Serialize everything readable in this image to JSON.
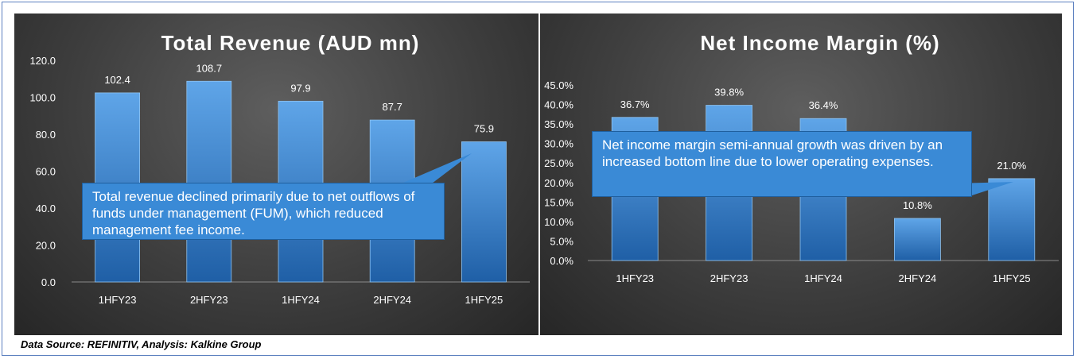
{
  "chart_data": [
    {
      "type": "bar",
      "title": "Total Revenue (AUD mn)",
      "categories": [
        "1HFY23",
        "2HFY23",
        "1HFY24",
        "2HFY24",
        "1HFY25"
      ],
      "values": [
        102.4,
        108.7,
        97.9,
        87.7,
        75.9
      ],
      "value_labels": [
        "102.4",
        "108.7",
        "97.9",
        "87.7",
        "75.9"
      ],
      "ylim": [
        0,
        120
      ],
      "yticks": [
        "0.0",
        "20.0",
        "40.0",
        "60.0",
        "80.0",
        "100.0",
        "120.0"
      ],
      "xlabel": "",
      "ylabel": "",
      "annotation": "Total revenue declined primarily due to net outflows of funds under management (FUM), which reduced management fee income."
    },
    {
      "type": "bar",
      "title": "Net Income Margin (%)",
      "categories": [
        "1HFY23",
        "2HFY23",
        "1HFY24",
        "2HFY24",
        "1HFY25"
      ],
      "values": [
        36.7,
        39.8,
        36.4,
        10.8,
        21.0
      ],
      "value_labels": [
        "36.7%",
        "39.8%",
        "36.4%",
        "10.8%",
        "21.0%"
      ],
      "ylim": [
        0,
        45
      ],
      "yticks": [
        "0.0%",
        "5.0%",
        "10.0%",
        "15.0%",
        "20.0%",
        "25.0%",
        "30.0%",
        "35.0%",
        "40.0%",
        "45.0%"
      ],
      "xlabel": "",
      "ylabel": "",
      "annotation": "Net income margin semi-annual growth was driven by an increased bottom line due to lower operating expenses."
    }
  ],
  "footer": {
    "source": "Data Source: REFINITIV, Analysis: Kalkine Group"
  },
  "colors": {
    "bar_top": "#5fa5e8",
    "bar_bottom": "#1f5fa6",
    "text": "#ffffff",
    "callout": "#3a8ad6"
  }
}
